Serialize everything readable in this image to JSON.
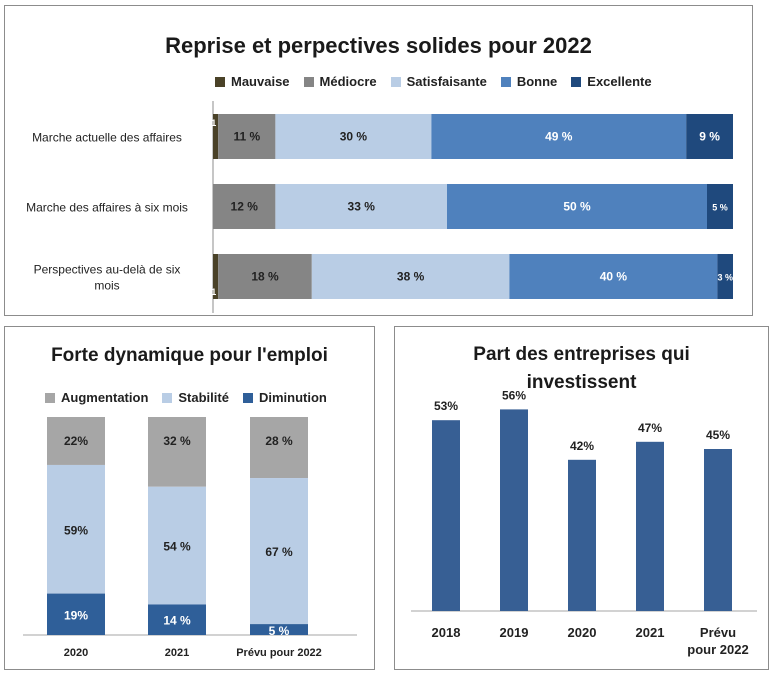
{
  "colors": {
    "mauvaise": "#4a4228",
    "mediocre": "#858585",
    "satisfaisante": "#b9cde5",
    "bonne": "#4f81bd",
    "excellente": "#1f497d",
    "augmentation": "#a6a6a6",
    "stabilite": "#b9cde5",
    "diminution": "#2f5f99",
    "invest_bar": "#375f94"
  },
  "chart_data": [
    {
      "type": "bar",
      "orientation": "horizontal-stacked-100",
      "title": "Reprise et perpectives solides pour 2022",
      "categories": [
        "Marche actuelle des affaires",
        "Marche des affaires à six mois",
        "Perspectives au-delà de six mois"
      ],
      "series": [
        {
          "name": "Mauvaise",
          "key": "mauvaise",
          "values": [
            1,
            0,
            1
          ],
          "labels": [
            "1 %",
            "",
            "1 %"
          ]
        },
        {
          "name": "Médiocre",
          "key": "mediocre",
          "values": [
            11,
            12,
            18
          ],
          "labels": [
            "11 %",
            "12 %",
            "18 %"
          ]
        },
        {
          "name": "Satisfaisante",
          "key": "satisfaisante",
          "values": [
            30,
            33,
            38
          ],
          "labels": [
            "30 %",
            "33 %",
            "38 %"
          ]
        },
        {
          "name": "Bonne",
          "key": "bonne",
          "values": [
            49,
            50,
            40
          ],
          "labels": [
            "49 %",
            "50 %",
            "40 %"
          ]
        },
        {
          "name": "Excellente",
          "key": "excellente",
          "values": [
            9,
            5,
            3
          ],
          "labels": [
            "9 %",
            "5 %",
            "3 %"
          ]
        }
      ],
      "legend": "top"
    },
    {
      "type": "bar",
      "orientation": "vertical-stacked-100",
      "title": "Forte dynamique pour l'emploi",
      "categories": [
        "2020",
        "2021",
        "Prévu pour 2022"
      ],
      "series": [
        {
          "name": "Augmentation",
          "key": "augmentation",
          "values": [
            22,
            32,
            28
          ],
          "labels": [
            "22%",
            "32 %",
            "28 %"
          ]
        },
        {
          "name": "Stabilité",
          "key": "stabilite",
          "values": [
            59,
            54,
            67
          ],
          "labels": [
            "59%",
            "54 %",
            "67 %"
          ]
        },
        {
          "name": "Diminution",
          "key": "diminution",
          "values": [
            19,
            14,
            5
          ],
          "labels": [
            "19%",
            "14 %",
            "5 %"
          ]
        }
      ],
      "legend": "top"
    },
    {
      "type": "bar",
      "orientation": "vertical",
      "title": "Part des entreprises qui investissent",
      "categories": [
        "2018",
        "2019",
        "2020",
        "2021",
        "Prévu pour 2022"
      ],
      "category_lines": [
        [
          "2018"
        ],
        [
          "2019"
        ],
        [
          "2020"
        ],
        [
          "2021"
        ],
        [
          "Prévu",
          "pour 2022"
        ]
      ],
      "values": [
        53,
        56,
        42,
        47,
        45
      ],
      "labels": [
        "53%",
        "56%",
        "42%",
        "47%",
        "45%"
      ],
      "ylim": [
        0,
        100
      ]
    }
  ]
}
